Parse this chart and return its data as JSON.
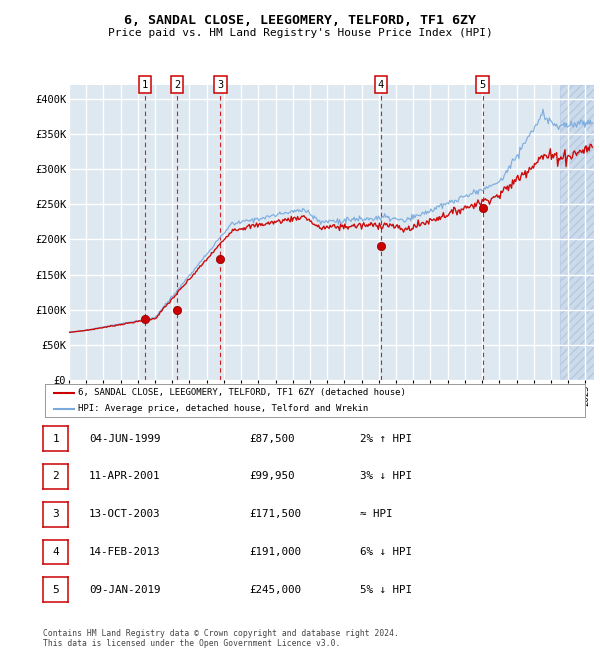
{
  "title": "6, SANDAL CLOSE, LEEGOMERY, TELFORD, TF1 6ZY",
  "subtitle": "Price paid vs. HM Land Registry's House Price Index (HPI)",
  "bg_color": "#dde8f0",
  "red_line_color": "#cc0000",
  "blue_line_color": "#7aaadd",
  "vline_color": "#cc0000",
  "ylim": [
    0,
    420000
  ],
  "yticks": [
    0,
    50000,
    100000,
    150000,
    200000,
    250000,
    300000,
    350000,
    400000
  ],
  "ytick_labels": [
    "£0",
    "£50K",
    "£100K",
    "£150K",
    "£200K",
    "£250K",
    "£300K",
    "£350K",
    "£400K"
  ],
  "xlim_start": 1995.0,
  "xlim_end": 2025.5,
  "sale_dates_decimal": [
    1999.42,
    2001.27,
    2003.79,
    2013.12,
    2019.03
  ],
  "sale_prices": [
    87500,
    99950,
    171500,
    191000,
    245000
  ],
  "sale_labels": [
    "1",
    "2",
    "3",
    "4",
    "5"
  ],
  "legend_entries": [
    "6, SANDAL CLOSE, LEEGOMERY, TELFORD, TF1 6ZY (detached house)",
    "HPI: Average price, detached house, Telford and Wrekin"
  ],
  "table_rows": [
    [
      "1",
      "04-JUN-1999",
      "£87,500",
      "2% ↑ HPI"
    ],
    [
      "2",
      "11-APR-2001",
      "£99,950",
      "3% ↓ HPI"
    ],
    [
      "3",
      "13-OCT-2003",
      "£171,500",
      "≈ HPI"
    ],
    [
      "4",
      "14-FEB-2013",
      "£191,000",
      "6% ↓ HPI"
    ],
    [
      "5",
      "09-JAN-2019",
      "£245,000",
      "5% ↓ HPI"
    ]
  ],
  "footer": "Contains HM Land Registry data © Crown copyright and database right 2024.\nThis data is licensed under the Open Government Licence v3.0."
}
